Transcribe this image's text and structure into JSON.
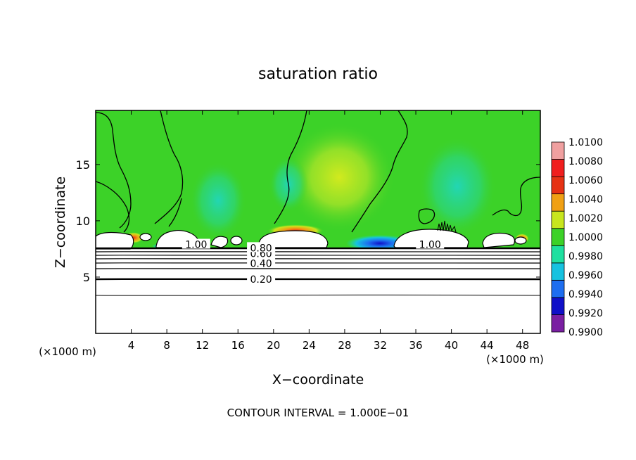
{
  "chart_data": {
    "type": "heatmap",
    "title": "saturation ratio",
    "xlabel": "X−coordinate",
    "ylabel": "Z−coordinate",
    "x_unit_left": "(×1000 m)",
    "x_unit_right": "(×1000 m)",
    "xlim": [
      0,
      50
    ],
    "ylim": [
      0,
      19.8
    ],
    "x_ticks": [
      4,
      8,
      12,
      16,
      20,
      24,
      28,
      32,
      36,
      40,
      44,
      48
    ],
    "x_tick_labels": [
      "4",
      "8",
      "12",
      "16",
      "20",
      "24",
      "28",
      "32",
      "36",
      "40",
      "44",
      "48"
    ],
    "y_ticks": [
      5,
      10,
      15
    ],
    "y_tick_labels": [
      "5",
      "10",
      "15"
    ],
    "colorbar": {
      "levels": [
        0.99,
        0.992,
        0.994,
        0.996,
        0.998,
        1.0,
        1.002,
        1.004,
        1.006,
        1.008,
        1.01
      ],
      "labels": [
        "0.9900",
        "0.9920",
        "0.9940",
        "0.9960",
        "0.9980",
        "1.0000",
        "1.0020",
        "1.0040",
        "1.0060",
        "1.0080",
        "1.0100"
      ],
      "colors": [
        "#7a1fa2",
        "#1010c8",
        "#1e6ef0",
        "#16c2e0",
        "#1fe0a0",
        "#3cd228",
        "#c8e61e",
        "#f0a014",
        "#e63214",
        "#f01e1e",
        "#f0a0a0"
      ]
    },
    "contour_labels": [
      {
        "text": "0.20",
        "x": 18.6,
        "z": 4.8
      },
      {
        "text": "0.40",
        "x": 18.6,
        "z": 6.2
      },
      {
        "text": "0.60",
        "x": 18.6,
        "z": 7.1
      },
      {
        "text": "0.80",
        "x": 18.6,
        "z": 7.6
      },
      {
        "text": "1.00",
        "x": 11.3,
        "z": 7.9
      },
      {
        "text": "1.00",
        "x": 37.6,
        "z": 7.9
      }
    ],
    "footer": "CONTOUR INTERVAL = 1.000E−01"
  }
}
